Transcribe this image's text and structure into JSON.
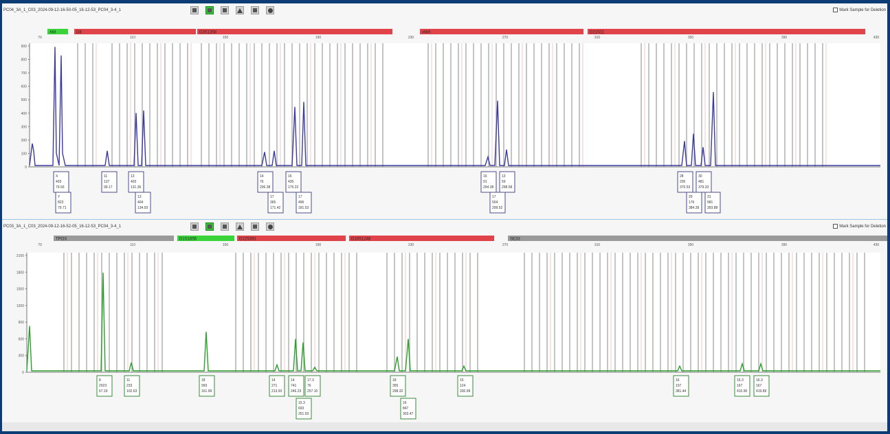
{
  "panels": [
    {
      "sample_name": "PC04_3A_1_C03_2024-09-12-16-50-05_16-12-53_PC04_3-4_1",
      "mark_label": "Mark Sample for Deletion",
      "trace_color": "#3a3aa0",
      "label_border": "#4a4a8a",
      "marker_bars": [
        {
          "name": "AM",
          "status": "green"
        },
        {
          "name": "D8",
          "status": "red"
        },
        {
          "name": "D3S1358",
          "status": "red"
        },
        {
          "name": "vWA",
          "status": "red"
        },
        {
          "name": "D21S11",
          "status": "red"
        }
      ],
      "x_ticks": [
        "70",
        "110",
        "150",
        "190",
        "230",
        "270",
        "310",
        "350",
        "390",
        "430"
      ],
      "y_ticks": [
        "900",
        "800",
        "700",
        "600",
        "500",
        "400",
        "300",
        "200",
        "100",
        "0"
      ],
      "labels_row1": [
        {
          "lines": [
            "X",
            "403",
            "79.93"
          ]
        },
        {
          "lines": [
            "11",
            "137",
            "99.17"
          ]
        },
        {
          "lines": [
            "13",
            "403",
            "131.36"
          ]
        },
        {
          "lines": [
            "14",
            "76",
            "206.38"
          ]
        },
        {
          "lines": [
            "16",
            "435",
            "175.22"
          ]
        },
        {
          "lines": [
            "16",
            "91",
            "294.38"
          ]
        },
        {
          "lines": [
            "13",
            "59",
            "298.58"
          ]
        },
        {
          "lines": [
            "28",
            "205",
            "370.53"
          ]
        },
        {
          "lines": [
            "30",
            "481",
            "379.33"
          ]
        }
      ],
      "labels_row2": [
        {
          "lines": [
            "Y",
            "823",
            "79.71"
          ]
        },
        {
          "lines": [
            "13",
            "404",
            "134.93"
          ]
        },
        {
          "lines": [
            "17",
            "365",
            "171.42"
          ]
        },
        {
          "lines": [
            "17",
            "496",
            "181.53"
          ]
        },
        {
          "lines": [
            "17",
            "504",
            "299.52"
          ]
        },
        {
          "lines": [
            "29",
            "176",
            "384.39"
          ]
        },
        {
          "lines": [
            "31",
            "581",
            "393.88"
          ]
        }
      ]
    },
    {
      "sample_name": "PC03_3A_1_C03_2024-09-12-16-52-05_16-12-53_PC04_3-4_1",
      "mark_label": "Mark Sample for Deletion",
      "trace_color": "#2aa02a",
      "label_border": "#3a8a3a",
      "marker_bars": [
        {
          "name": "TPOX",
          "status": "gray"
        },
        {
          "name": "D1S1656",
          "status": "green"
        },
        {
          "name": "D12S391",
          "status": "red"
        },
        {
          "name": "D10S1248",
          "status": "red"
        },
        {
          "name": "SE33",
          "status": "gray"
        }
      ],
      "x_ticks": [
        "70",
        "110",
        "150",
        "190",
        "230",
        "270",
        "310",
        "350",
        "390",
        "430"
      ],
      "y_ticks": [
        "2100",
        "1800",
        "1500",
        "1200",
        "900",
        "600",
        "300",
        "0"
      ],
      "labels_row1": [
        {
          "lines": [
            "8",
            "2023",
            "67.19"
          ]
        },
        {
          "lines": [
            "11",
            "233",
            "102.63"
          ]
        },
        {
          "lines": [
            "18",
            "993",
            "161.99"
          ]
        },
        {
          "lines": [
            "14",
            "271",
            "213.93"
          ]
        },
        {
          "lines": [
            "14",
            "741",
            "246.23"
          ]
        },
        {
          "lines": [
            "17.3",
            "76",
            "257.10"
          ]
        },
        {
          "lines": [
            "18",
            "355",
            "298.32"
          ]
        },
        {
          "lines": [
            "15",
            "124",
            "330.99"
          ]
        },
        {
          "lines": [
            "16",
            "107",
            "381.44"
          ]
        },
        {
          "lines": [
            "16.3",
            "167",
            "410.90"
          ]
        },
        {
          "lines": [
            "16.3",
            "167",
            "419.89"
          ]
        }
      ],
      "labels_row2": [
        {
          "lines": [
            "15.3",
            "693",
            "251.93"
          ]
        },
        {
          "lines": [
            "16",
            "847",
            "303.47"
          ]
        }
      ]
    }
  ]
}
